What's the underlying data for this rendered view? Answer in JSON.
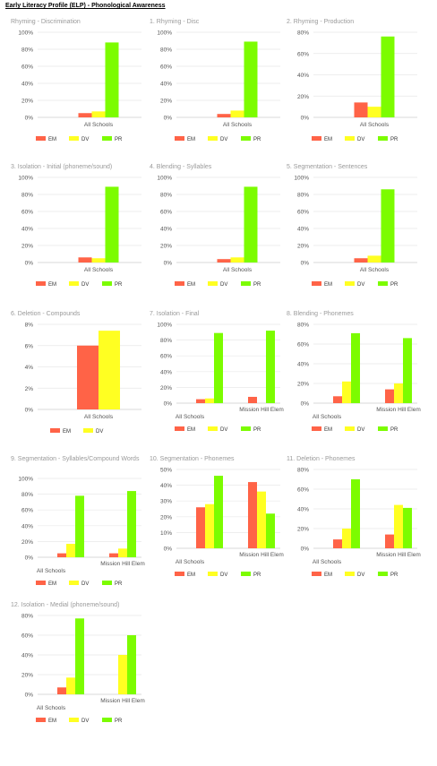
{
  "report_title": "Early Literacy Profile (ELP) - Phonological Awareness",
  "colors": {
    "EM": "#ff6347",
    "DV": "#ffff22",
    "PR": "#7cfc00",
    "grid": "#e8e8e8",
    "axis_text": "#555555"
  },
  "chart_data": [
    {
      "type": "bar",
      "title": "Rhyming - Discrimination",
      "categories": [
        "All Schools"
      ],
      "ylim": [
        0,
        100
      ],
      "ytick_step": 20,
      "yticks_pct": true,
      "series": [
        {
          "name": "EM",
          "values": [
            5
          ]
        },
        {
          "name": "DV",
          "values": [
            7
          ]
        },
        {
          "name": "PR",
          "values": [
            88
          ]
        }
      ],
      "legend": "bottom"
    },
    {
      "type": "bar",
      "title": "1. Rhyming - Disc",
      "categories": [
        "All Schools"
      ],
      "ylim": [
        0,
        100
      ],
      "ytick_step": 20,
      "yticks_pct": true,
      "series": [
        {
          "name": "EM",
          "values": [
            4
          ]
        },
        {
          "name": "DV",
          "values": [
            8
          ]
        },
        {
          "name": "PR",
          "values": [
            89
          ]
        }
      ],
      "legend": "bottom"
    },
    {
      "type": "bar",
      "title": "2. Rhyming - Production",
      "categories": [
        "All Schools"
      ],
      "ylim": [
        0,
        80
      ],
      "ytick_step": 20,
      "yticks_pct": true,
      "series": [
        {
          "name": "EM",
          "values": [
            14
          ]
        },
        {
          "name": "DV",
          "values": [
            10
          ]
        },
        {
          "name": "PR",
          "values": [
            76
          ]
        }
      ],
      "legend": "bottom"
    },
    {
      "type": "bar",
      "title": "3. Isolation - Initial (phoneme/sound)",
      "categories": [
        "All Schools"
      ],
      "ylim": [
        0,
        100
      ],
      "ytick_step": 20,
      "yticks_pct": true,
      "series": [
        {
          "name": "EM",
          "values": [
            6
          ]
        },
        {
          "name": "DV",
          "values": [
            5
          ]
        },
        {
          "name": "PR",
          "values": [
            89
          ]
        }
      ],
      "legend": "bottom"
    },
    {
      "type": "bar",
      "title": "4. Blending - Syllables",
      "categories": [
        "All Schools"
      ],
      "ylim": [
        0,
        100
      ],
      "ytick_step": 20,
      "yticks_pct": true,
      "series": [
        {
          "name": "EM",
          "values": [
            4
          ]
        },
        {
          "name": "DV",
          "values": [
            6
          ]
        },
        {
          "name": "PR",
          "values": [
            89
          ]
        }
      ],
      "legend": "bottom"
    },
    {
      "type": "bar",
      "title": "5. Segmentation - Sentences",
      "categories": [
        "All Schools"
      ],
      "ylim": [
        0,
        100
      ],
      "ytick_step": 20,
      "yticks_pct": true,
      "series": [
        {
          "name": "EM",
          "values": [
            5
          ]
        },
        {
          "name": "DV",
          "values": [
            8
          ]
        },
        {
          "name": "PR",
          "values": [
            86
          ]
        }
      ],
      "legend": "bottom"
    },
    {
      "type": "bar",
      "title": "6. Deletion - Compounds",
      "categories": [
        "All Schools"
      ],
      "ylim": [
        0,
        8
      ],
      "ytick_step": 2,
      "yticks_pct": true,
      "series": [
        {
          "name": "EM",
          "values": [
            6
          ]
        },
        {
          "name": "DV",
          "values": [
            7.4
          ]
        }
      ],
      "legend": "bottom"
    },
    {
      "type": "bar",
      "title": "7. Isolation - Final",
      "categories": [
        "All Schools",
        "Mission Hill Elem"
      ],
      "ylim": [
        0,
        100
      ],
      "ytick_step": 20,
      "yticks_pct": true,
      "series": [
        {
          "name": "EM",
          "values": [
            5,
            8
          ]
        },
        {
          "name": "DV",
          "values": [
            6,
            0
          ]
        },
        {
          "name": "PR",
          "values": [
            89,
            92
          ]
        }
      ],
      "legend": "bottom"
    },
    {
      "type": "bar",
      "title": "8. Blending - Phonemes",
      "categories": [
        "All Schools",
        "Mission Hill Elem"
      ],
      "ylim": [
        0,
        80
      ],
      "ytick_step": 20,
      "yticks_pct": true,
      "series": [
        {
          "name": "EM",
          "values": [
            7,
            14
          ]
        },
        {
          "name": "DV",
          "values": [
            22,
            20
          ]
        },
        {
          "name": "PR",
          "values": [
            71,
            66
          ]
        }
      ],
      "legend": "bottom"
    },
    {
      "type": "bar",
      "title": "9. Segmentation - Syllables/Compound Words",
      "categories": [
        "All Schools",
        "Mission Hill Elem"
      ],
      "ylim": [
        0,
        100
      ],
      "ytick_step": 20,
      "yticks_pct": true,
      "series": [
        {
          "name": "EM",
          "values": [
            5,
            5
          ]
        },
        {
          "name": "DV",
          "values": [
            17,
            11
          ]
        },
        {
          "name": "PR",
          "values": [
            78,
            84
          ]
        }
      ],
      "legend": "bottom"
    },
    {
      "type": "bar",
      "title": "10. Segmentation - Phonemes",
      "categories": [
        "All Schools",
        "Mission Hill Elem"
      ],
      "ylim": [
        0,
        50
      ],
      "ytick_step": 10,
      "yticks_pct": true,
      "series": [
        {
          "name": "EM",
          "values": [
            26,
            42
          ]
        },
        {
          "name": "DV",
          "values": [
            28,
            36
          ]
        },
        {
          "name": "PR",
          "values": [
            46,
            22
          ]
        }
      ],
      "legend": "bottom"
    },
    {
      "type": "bar",
      "title": "11. Deletion - Phonemes",
      "categories": [
        "All Schools",
        "Mission Hill Elem"
      ],
      "ylim": [
        0,
        80
      ],
      "ytick_step": 20,
      "yticks_pct": true,
      "series": [
        {
          "name": "EM",
          "values": [
            9,
            14
          ]
        },
        {
          "name": "DV",
          "values": [
            20,
            44
          ]
        },
        {
          "name": "PR",
          "values": [
            70,
            41
          ]
        }
      ],
      "legend": "bottom"
    },
    {
      "type": "bar",
      "title": "12. Isolation - Medial (phoneme/sound)",
      "categories": [
        "All Schools",
        "Mission Hill Elem"
      ],
      "ylim": [
        0,
        80
      ],
      "ytick_step": 20,
      "yticks_pct": true,
      "series": [
        {
          "name": "EM",
          "values": [
            7,
            0
          ]
        },
        {
          "name": "DV",
          "values": [
            17,
            40
          ]
        },
        {
          "name": "PR",
          "values": [
            77,
            60
          ]
        }
      ],
      "legend": "bottom"
    }
  ]
}
